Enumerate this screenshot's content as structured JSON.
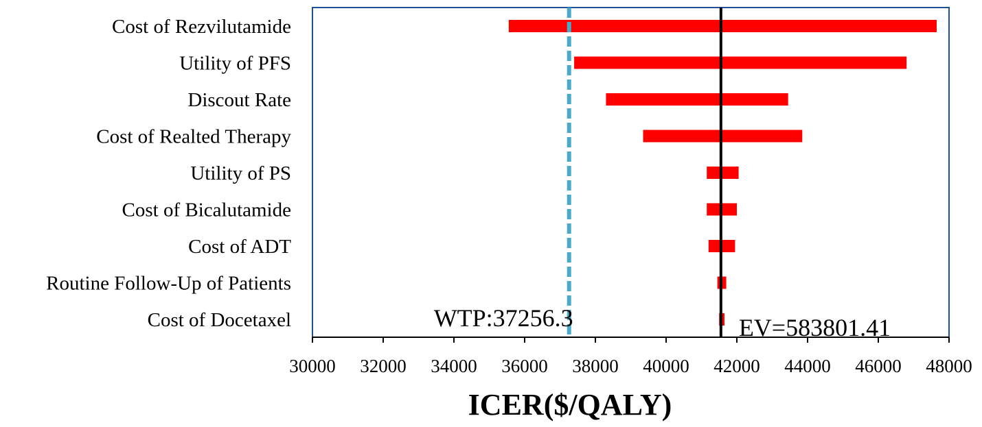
{
  "chart_data": {
    "type": "bar",
    "subtype": "tornado",
    "orientation": "horizontal",
    "title": "",
    "xlabel": "ICER($/QALY)",
    "ylabel": "",
    "xlim": [
      30000,
      48000
    ],
    "xticks": [
      30000,
      32000,
      34000,
      36000,
      38000,
      40000,
      42000,
      44000,
      46000,
      48000
    ],
    "grid": false,
    "legend": "none",
    "bar_color": "#ff0000",
    "categories": [
      "Cost of Rezvilutamide",
      "Utility of PFS",
      "Discout Rate",
      "Cost of Realted Therapy",
      "Utility of PS",
      "Cost of Bicalutamide",
      "Cost of ADT",
      "Routine Follow-Up of Patients",
      "Cost of Docetaxel"
    ],
    "ranges": [
      [
        35550,
        47650
      ],
      [
        37400,
        46800
      ],
      [
        38300,
        43450
      ],
      [
        39350,
        43850
      ],
      [
        41150,
        42050
      ],
      [
        41150,
        42000
      ],
      [
        41200,
        41950
      ],
      [
        41450,
        41700
      ],
      [
        41500,
        41650
      ]
    ],
    "reference_lines": [
      {
        "x": 37256.3,
        "label": "WTP:37256.3",
        "style": "dashed",
        "color": "#4aa8c8"
      },
      {
        "x": 41550,
        "label": "EV=583801.41",
        "style": "solid",
        "color": "#000000"
      }
    ]
  }
}
